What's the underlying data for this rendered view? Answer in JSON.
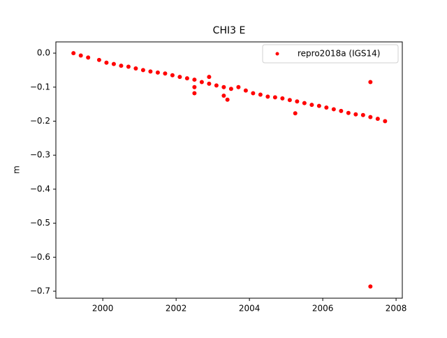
{
  "chart_data": {
    "type": "scatter",
    "title": "CHI3 E",
    "y_label": "m",
    "series": [
      {
        "name": "repro2018a (IGS14)",
        "color": "#ff0000",
        "x": [
          1999.2,
          1999.4,
          1999.6,
          1999.9,
          2000.1,
          2000.3,
          2000.5,
          2000.7,
          2000.9,
          2001.1,
          2001.3,
          2001.5,
          2001.7,
          2001.9,
          2002.1,
          2002.3,
          2002.5,
          2002.7,
          2002.9,
          2003.1,
          2003.3,
          2003.5,
          2003.7,
          2003.9,
          2004.1,
          2004.3,
          2004.5,
          2004.7,
          2004.9,
          2005.1,
          2005.3,
          2005.5,
          2005.7,
          2005.9,
          2006.1,
          2006.3,
          2006.5,
          2006.7,
          2006.9,
          2007.1,
          2007.3,
          2007.5,
          2007.7,
          2002.5,
          2002.5,
          2002.9,
          2003.3,
          2003.4,
          2005.25,
          2007.3,
          2007.3
        ],
        "values": [
          0.0,
          -0.007,
          -0.013,
          -0.02,
          -0.028,
          -0.032,
          -0.037,
          -0.04,
          -0.045,
          -0.05,
          -0.054,
          -0.057,
          -0.06,
          -0.065,
          -0.07,
          -0.074,
          -0.078,
          -0.085,
          -0.09,
          -0.095,
          -0.1,
          -0.105,
          -0.1,
          -0.11,
          -0.118,
          -0.122,
          -0.128,
          -0.13,
          -0.133,
          -0.138,
          -0.142,
          -0.147,
          -0.152,
          -0.155,
          -0.16,
          -0.165,
          -0.17,
          -0.176,
          -0.18,
          -0.182,
          -0.188,
          -0.193,
          -0.2,
          -0.1,
          -0.118,
          -0.07,
          -0.125,
          -0.137,
          -0.177,
          -0.085,
          -0.686
        ]
      }
    ],
    "xlim": [
      1998.72,
      2008.17
    ],
    "ylim": [
      -0.7205,
      0.033
    ],
    "xticks": [
      2000,
      2002,
      2004,
      2006,
      2008
    ],
    "yticks": [
      {
        "value": 0.0,
        "label": "0.0"
      },
      {
        "value": -0.1,
        "label": "−0.1"
      },
      {
        "value": -0.2,
        "label": "−0.2"
      },
      {
        "value": -0.3,
        "label": "−0.3"
      },
      {
        "value": -0.4,
        "label": "−0.4"
      },
      {
        "value": -0.5,
        "label": "−0.5"
      },
      {
        "value": -0.6,
        "label": "−0.6"
      },
      {
        "value": -0.7,
        "label": "−0.7"
      }
    ],
    "legend": "upper right"
  }
}
